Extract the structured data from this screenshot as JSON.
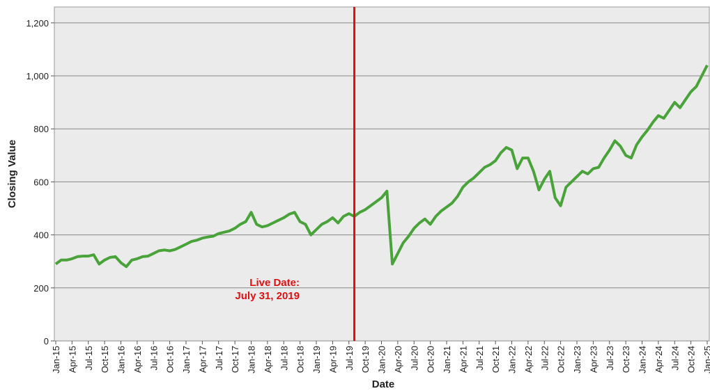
{
  "chart_data": {
    "type": "line",
    "y_label": "Closing Value",
    "x_label": "Date",
    "annotation": [
      "Live Date:",
      "July 31, 2019"
    ],
    "annotation_color": "#e01010",
    "live_date_index": 55,
    "color": "#4aa33a",
    "grid": true,
    "ylim": [
      0,
      1260
    ],
    "yticks": [
      0,
      200,
      400,
      600,
      800,
      {
        "value": 1000,
        "label": "1,000"
      },
      {
        "value": 1200,
        "label": "1,200"
      }
    ],
    "categories": [
      "Jan-15",
      null,
      null,
      "Apr-15",
      null,
      null,
      "Jul-15",
      null,
      null,
      "Oct-15",
      null,
      null,
      "Jan-16",
      null,
      null,
      "Apr-16",
      null,
      null,
      "Jul-16",
      null,
      null,
      "Oct-16",
      null,
      null,
      "Jan-17",
      null,
      null,
      "Apr-17",
      null,
      null,
      "Jul-17",
      null,
      null,
      "Oct-17",
      null,
      null,
      "Jan-18",
      null,
      null,
      "Apr-18",
      null,
      null,
      "Jul-18",
      null,
      null,
      "Oct-18",
      null,
      null,
      "Jan-19",
      null,
      null,
      "Apr-19",
      null,
      null,
      "Jul-19",
      null,
      null,
      "Oct-19",
      null,
      null,
      "Jan-20",
      null,
      null,
      "Apr-20",
      null,
      null,
      "Jul-20",
      null,
      null,
      "Oct-20",
      null,
      null,
      "Jan-21",
      null,
      null,
      "Apr-21",
      null,
      null,
      "Jul-21",
      null,
      null,
      "Oct-21",
      null,
      null,
      "Jan-22",
      null,
      null,
      "Apr-22",
      null,
      null,
      "Jul-22",
      null,
      null,
      "Oct-22",
      null,
      null,
      "Jan-23",
      null,
      null,
      "Apr-23",
      null,
      null,
      "Jul-23",
      null,
      null,
      "Oct-23",
      null,
      null,
      "Jan-24",
      null,
      null,
      "Apr-24",
      null,
      null,
      "Jul-24",
      null,
      null,
      "Oct-24",
      null,
      null,
      "Jan-25"
    ],
    "values": [
      290,
      305,
      305,
      310,
      318,
      320,
      320,
      325,
      290,
      305,
      315,
      318,
      295,
      280,
      305,
      310,
      318,
      320,
      330,
      340,
      343,
      340,
      345,
      355,
      365,
      375,
      380,
      388,
      392,
      395,
      405,
      410,
      415,
      425,
      440,
      450,
      485,
      440,
      430,
      435,
      445,
      455,
      465,
      478,
      485,
      450,
      440,
      400,
      420,
      440,
      450,
      465,
      445,
      470,
      480,
      470,
      485,
      495,
      510,
      525,
      540,
      565,
      290,
      330,
      370,
      395,
      425,
      445,
      460,
      440,
      470,
      490,
      505,
      520,
      545,
      580,
      600,
      615,
      635,
      655,
      665,
      680,
      710,
      730,
      720,
      650,
      690,
      690,
      640,
      570,
      610,
      640,
      540,
      510,
      580,
      600,
      620,
      640,
      630,
      650,
      655,
      690,
      720,
      755,
      735,
      700,
      690,
      740,
      770,
      795,
      825,
      850,
      840,
      870,
      900,
      880,
      910,
      940,
      960,
      1000,
      1040
    ]
  }
}
